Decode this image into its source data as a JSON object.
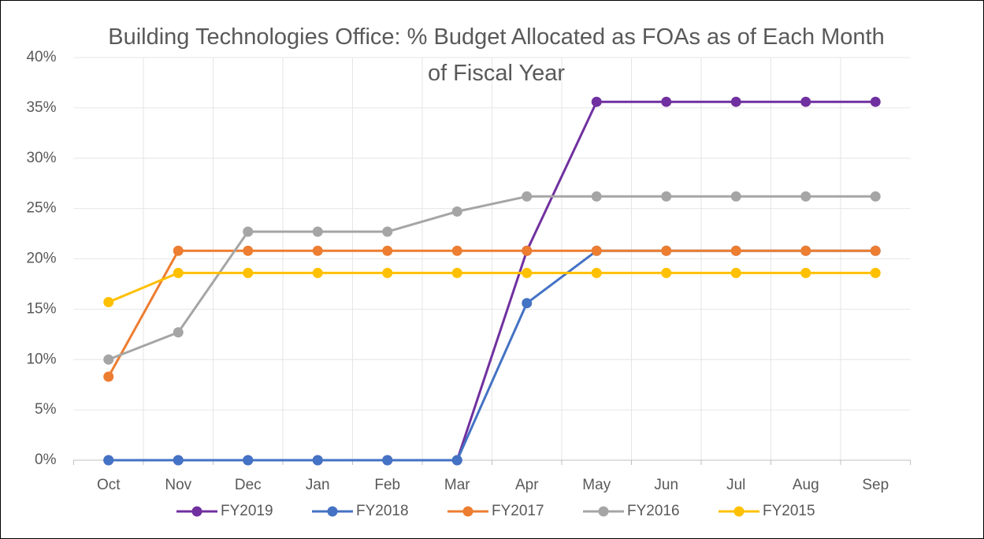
{
  "chart_data": {
    "type": "line",
    "title": "Building Technologies Office: % Budget Allocated as FOAs as of Each Month of Fiscal Year",
    "categories": [
      "Oct",
      "Nov",
      "Dec",
      "Jan",
      "Feb",
      "Mar",
      "Apr",
      "May",
      "Jun",
      "Jul",
      "Aug",
      "Sep"
    ],
    "series": [
      {
        "name": "FY2019",
        "color": "#7030a0",
        "values": [
          0,
          0,
          0,
          0,
          0,
          0,
          20.8,
          35.6,
          35.6,
          35.6,
          35.6,
          35.6
        ]
      },
      {
        "name": "FY2018",
        "color": "#4472c4",
        "values": [
          0,
          0,
          0,
          0,
          0,
          0,
          15.6,
          20.8,
          20.8,
          20.8,
          20.8,
          20.8
        ]
      },
      {
        "name": "FY2017",
        "color": "#ed7d31",
        "values": [
          8.3,
          20.8,
          20.8,
          20.8,
          20.8,
          20.8,
          20.8,
          20.8,
          20.8,
          20.8,
          20.8,
          20.8
        ]
      },
      {
        "name": "FY2016",
        "color": "#a5a5a5",
        "values": [
          10.0,
          12.7,
          22.7,
          22.7,
          22.7,
          24.7,
          26.2,
          26.2,
          26.2,
          26.2,
          26.2,
          26.2
        ]
      },
      {
        "name": "FY2015",
        "color": "#ffc000",
        "values": [
          15.7,
          18.6,
          18.6,
          18.6,
          18.6,
          18.6,
          18.6,
          18.6,
          18.6,
          18.6,
          18.6,
          18.6
        ]
      }
    ],
    "ylim": [
      0,
      40
    ],
    "yticks": [
      {
        "value": 0,
        "label": "0%"
      },
      {
        "value": 5,
        "label": "5%"
      },
      {
        "value": 10,
        "label": "10%"
      },
      {
        "value": 15,
        "label": "15%"
      },
      {
        "value": 20,
        "label": "20%"
      },
      {
        "value": 25,
        "label": "25%"
      },
      {
        "value": 30,
        "label": "30%"
      },
      {
        "value": 35,
        "label": "35%"
      },
      {
        "value": 40,
        "label": "40%"
      }
    ],
    "grid": true,
    "legend": "bottom"
  }
}
